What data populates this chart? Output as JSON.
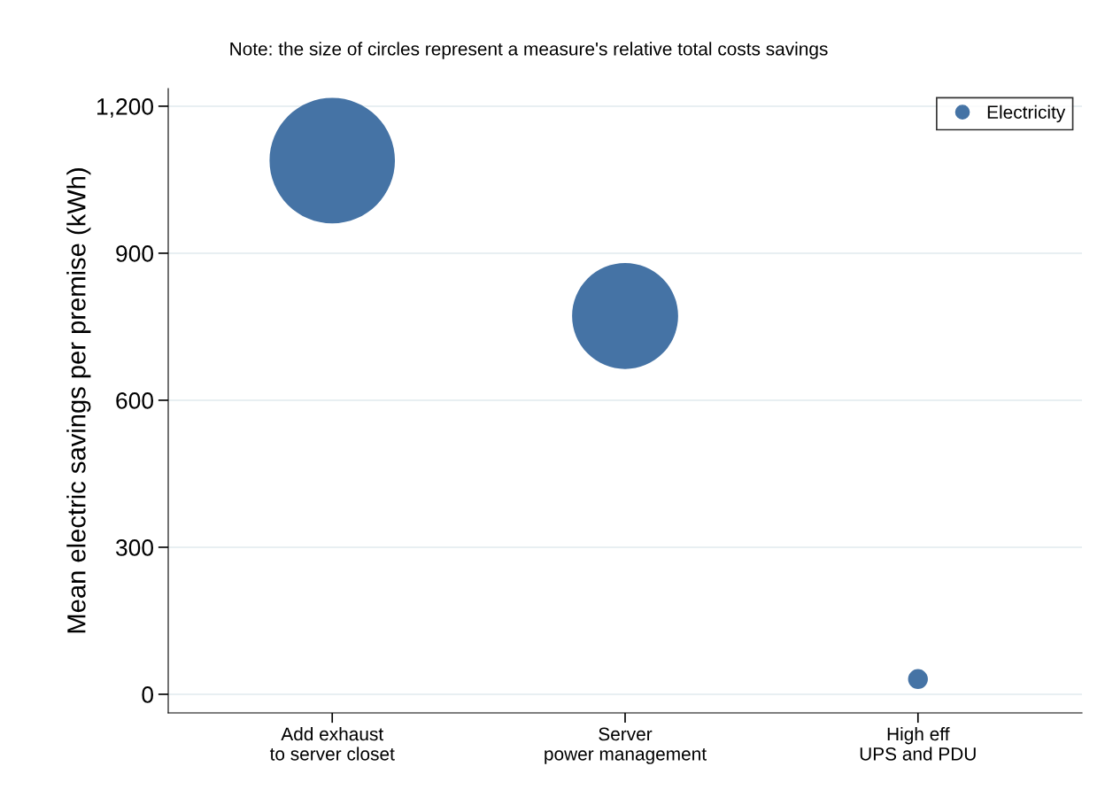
{
  "chart_data": {
    "type": "bubble",
    "subtitle": "Note: the size of circles represent a measure's relative total costs savings",
    "ylabel": "Mean electric savings per premise (kWh)",
    "categories": [
      "Add exhaust\nto server closet",
      "Server\npower management",
      "High eff\nUPS and PDU"
    ],
    "series": [
      {
        "name": "Electricity",
        "color": "#4573a5",
        "values": [
          1089,
          772,
          31
        ],
        "sizes": [
          1,
          0.715,
          0.025
        ]
      }
    ],
    "ylim": [
      -38,
      1236
    ],
    "yticks": [
      0,
      300,
      600,
      900,
      {
        "value": 1200,
        "label": "1,200"
      }
    ],
    "grid": "y",
    "legend": "top right"
  }
}
